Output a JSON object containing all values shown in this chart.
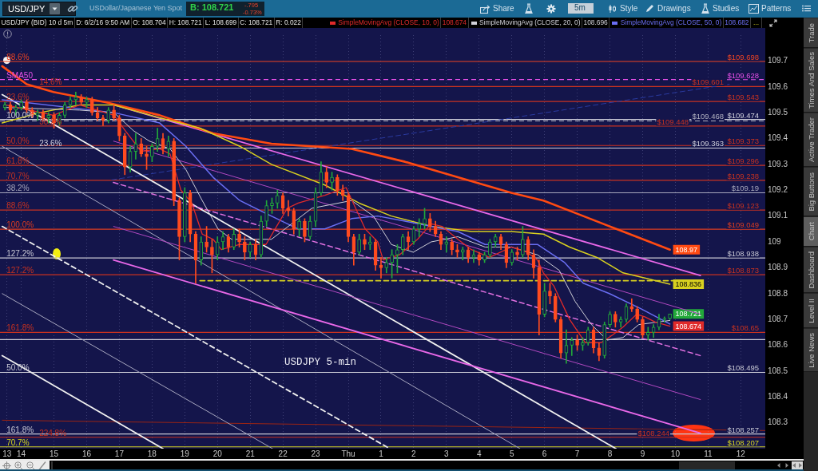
{
  "chart_data": {
    "type": "candlestick",
    "title": "USD/JPY (BID) 10 d 5m",
    "x": [
      "--06-01T13:30",
      "--06-01T13:40",
      "--06-01T13:50",
      "--06-01T14:00",
      "--06-01T14:10",
      "--06-01T14:20",
      "--06-01T14:30",
      "--06-01T14:40",
      "--06-01T14:50",
      "--06-01T15:00",
      "--06-01T15:10",
      "--06-01T15:20",
      "--06-01T15:30",
      "--06-01T15:40",
      "--06-01T15:50",
      "--06-01T16:00",
      "--06-01T16:10",
      "--06-01T16:20",
      "--06-01T16:30",
      "--06-01T16:40",
      "--06-01T16:50",
      "--06-01T17:00",
      "--06-01T17:10",
      "--06-01T17:20",
      "--06-01T17:30",
      "--06-01T17:40",
      "--06-01T17:50",
      "--06-01T18:00",
      "--06-01T18:10",
      "--06-01T18:20",
      "--06-01T18:30",
      "--06-01T18:40",
      "--06-01T18:50",
      "--06-01T19:00",
      "--06-01T19:10",
      "--06-01T19:20",
      "--06-01T19:30",
      "--06-01T19:40",
      "--06-01T19:50",
      "--06-01T20:00",
      "--06-01T20:10",
      "--06-01T20:20",
      "--06-01T20:30",
      "--06-01T20:40",
      "--06-01T20:50",
      "--06-01T21:00",
      "--06-01T21:10",
      "--06-01T21:20",
      "--06-01T21:30",
      "--06-01T21:40",
      "--06-01T21:50",
      "--06-01T22:00",
      "--06-01T22:10",
      "--06-01T22:20",
      "--06-01T22:30",
      "--06-01T22:40",
      "--06-01T22:50",
      "--06-01T23:00",
      "--06-01T23:10",
      "--06-01T23:20",
      "--06-01T23:30",
      "--06-01T23:40",
      "--06-01T23:50",
      "--06-02T00:00",
      "--06-02T00:10",
      "--06-02T00:20",
      "--06-02T00:30",
      "--06-02T00:40",
      "--06-02T00:50",
      "--06-02T01:00",
      "--06-02T01:10",
      "--06-02T01:20",
      "--06-02T01:30",
      "--06-02T01:40",
      "--06-02T01:50",
      "--06-02T02:00",
      "--06-02T02:10",
      "--06-02T02:20",
      "--06-02T02:30",
      "--06-02T02:40",
      "--06-02T02:50",
      "--06-02T03:00",
      "--06-02T03:10",
      "--06-02T03:20",
      "--06-02T03:30",
      "--06-02T03:40",
      "--06-02T03:50",
      "--06-02T04:00",
      "--06-02T04:10",
      "--06-02T04:20",
      "--06-02T04:30",
      "--06-02T04:40",
      "--06-02T04:50",
      "--06-02T05:00",
      "--06-02T05:10",
      "--06-02T05:20",
      "--06-02T05:30",
      "--06-02T05:40",
      "--06-02T05:50",
      "--06-02T06:00",
      "--06-02T06:10",
      "--06-02T06:20",
      "--06-02T06:30",
      "--06-02T06:40",
      "--06-02T06:50",
      "--06-02T07:00",
      "--06-02T07:10",
      "--06-02T07:20",
      "--06-02T07:30",
      "--06-02T07:40",
      "--06-02T07:50",
      "--06-02T08:00",
      "--06-02T08:10",
      "--06-02T08:20",
      "--06-02T08:30",
      "--06-02T08:40",
      "--06-02T08:50",
      "--06-02T09:00",
      "--06-02T09:10",
      "--06-02T09:20",
      "--06-02T09:30",
      "--06-02T09:40",
      "--06-02T09:50"
    ],
    "ohlc": [
      [
        109.52,
        109.54,
        109.51,
        109.53
      ],
      [
        109.53,
        109.54,
        109.5,
        109.51
      ],
      [
        109.51,
        109.53,
        109.49,
        109.52
      ],
      [
        109.52,
        109.55,
        109.51,
        109.54
      ],
      [
        109.54,
        109.55,
        109.5,
        109.51
      ],
      [
        109.51,
        109.52,
        109.48,
        109.49
      ],
      [
        109.49,
        109.51,
        109.47,
        109.5
      ],
      [
        109.5,
        109.51,
        109.47,
        109.48
      ],
      [
        109.48,
        109.5,
        109.46,
        109.49
      ],
      [
        109.49,
        109.5,
        109.44,
        109.46
      ],
      [
        109.46,
        109.5,
        109.45,
        109.49
      ],
      [
        109.49,
        109.54,
        109.48,
        109.53
      ],
      [
        109.53,
        109.56,
        109.52,
        109.55
      ],
      [
        109.55,
        109.58,
        109.53,
        109.56
      ],
      [
        109.56,
        109.57,
        109.53,
        109.54
      ],
      [
        109.54,
        109.56,
        109.52,
        109.55
      ],
      [
        109.55,
        109.56,
        109.49,
        109.5
      ],
      [
        109.5,
        109.52,
        109.47,
        109.48
      ],
      [
        109.48,
        109.49,
        109.45,
        109.47
      ],
      [
        109.47,
        109.52,
        109.46,
        109.51
      ],
      [
        109.51,
        109.53,
        109.47,
        109.48
      ],
      [
        109.48,
        109.49,
        109.39,
        109.41
      ],
      [
        109.41,
        109.42,
        109.26,
        109.29
      ],
      [
        109.29,
        109.37,
        109.27,
        109.35
      ],
      [
        109.35,
        109.42,
        109.32,
        109.38
      ],
      [
        109.38,
        109.4,
        109.33,
        109.34
      ],
      [
        109.34,
        109.37,
        109.28,
        109.33
      ],
      [
        109.33,
        109.38,
        109.31,
        109.37
      ],
      [
        109.37,
        109.44,
        109.35,
        109.4
      ],
      [
        109.4,
        109.42,
        109.34,
        109.36
      ],
      [
        109.36,
        109.41,
        109.33,
        109.39
      ],
      [
        109.39,
        109.4,
        109.14,
        109.16
      ],
      [
        109.16,
        109.17,
        108.93,
        109.02
      ],
      [
        109.02,
        109.21,
        109,
        109.19
      ],
      [
        109.19,
        109.2,
        109,
        109.03
      ],
      [
        109.03,
        109.04,
        108.84,
        108.93
      ],
      [
        108.93,
        109.02,
        108.91,
        109
      ],
      [
        109,
        109.06,
        108.96,
        108.98
      ],
      [
        108.98,
        109.01,
        108.88,
        108.95
      ],
      [
        108.95,
        109.02,
        108.93,
        109
      ],
      [
        109,
        109.04,
        108.97,
        109.02
      ],
      [
        109.02,
        109.03,
        108.96,
        108.98
      ],
      [
        108.98,
        109.05,
        108.97,
        109.03
      ],
      [
        109.03,
        109.05,
        108.98,
        109
      ],
      [
        109,
        109.02,
        108.93,
        108.96
      ],
      [
        108.96,
        109,
        108.94,
        108.99
      ],
      [
        108.99,
        109.01,
        108.93,
        108.95
      ],
      [
        108.95,
        109.1,
        108.94,
        109.08
      ],
      [
        109.08,
        109.16,
        109.06,
        109.14
      ],
      [
        109.14,
        109.17,
        109.11,
        109.15
      ],
      [
        109.15,
        109.2,
        109.13,
        109.18
      ],
      [
        109.18,
        109.19,
        109.11,
        109.13
      ],
      [
        109.13,
        109.16,
        109.1,
        109.12
      ],
      [
        109.12,
        109.13,
        109.03,
        109.05
      ],
      [
        109.05,
        109.09,
        109.02,
        109.08
      ],
      [
        109.08,
        109.09,
        109,
        109.02
      ],
      [
        109.02,
        109.1,
        109.01,
        109.08
      ],
      [
        109.08,
        109.21,
        109.06,
        109.19
      ],
      [
        109.19,
        109.31,
        109.18,
        109.27
      ],
      [
        109.27,
        109.29,
        109.21,
        109.23
      ],
      [
        109.23,
        109.27,
        109.2,
        109.25
      ],
      [
        109.25,
        109.26,
        109.18,
        109.2
      ],
      [
        109.2,
        109.22,
        109.16,
        109.18
      ],
      [
        109.18,
        109.19,
        109,
        109.02
      ],
      [
        109.02,
        109.03,
        108.91,
        108.96
      ],
      [
        108.96,
        109.03,
        108.95,
        109.01
      ],
      [
        109.01,
        109.03,
        108.97,
        108.99
      ],
      [
        108.99,
        109.02,
        108.97,
        109
      ],
      [
        109,
        109.01,
        108.89,
        108.91
      ],
      [
        108.91,
        108.94,
        108.86,
        108.9
      ],
      [
        108.9,
        108.94,
        108.88,
        108.92
      ],
      [
        108.92,
        108.97,
        108.86,
        108.95
      ],
      [
        108.95,
        108.99,
        108.88,
        108.97
      ],
      [
        108.97,
        109.03,
        108.95,
        109.02
      ],
      [
        109.02,
        109.04,
        108.97,
        109
      ],
      [
        109,
        109.06,
        108.99,
        109.05
      ],
      [
        109.05,
        109.09,
        109.02,
        109.07
      ],
      [
        109.07,
        109.13,
        109.05,
        109.09
      ],
      [
        109.09,
        109.11,
        109.04,
        109.06
      ],
      [
        109.06,
        109.08,
        109.02,
        109.03
      ],
      [
        109.03,
        109.04,
        108.97,
        108.99
      ],
      [
        108.99,
        109.02,
        108.96,
        109
      ],
      [
        109,
        109.01,
        108.95,
        108.97
      ],
      [
        108.97,
        108.99,
        108.94,
        108.96
      ],
      [
        108.96,
        108.98,
        108.93,
        108.97
      ],
      [
        108.97,
        108.98,
        108.92,
        108.94
      ],
      [
        108.94,
        108.97,
        108.92,
        108.95
      ],
      [
        108.95,
        108.96,
        108.91,
        108.93
      ],
      [
        108.93,
        108.96,
        108.92,
        108.95
      ],
      [
        108.95,
        109.01,
        108.94,
        109
      ],
      [
        109,
        109.03,
        108.98,
        109.02
      ],
      [
        109.02,
        109.03,
        108.97,
        108.99
      ],
      [
        108.99,
        109,
        108.9,
        108.92
      ],
      [
        108.92,
        108.97,
        108.91,
        108.96
      ],
      [
        108.96,
        108.98,
        108.93,
        108.95
      ],
      [
        108.95,
        109.06,
        108.94,
        109.01
      ],
      [
        109.01,
        109.02,
        108.93,
        108.95
      ],
      [
        108.95,
        108.97,
        108.86,
        108.9
      ],
      [
        108.9,
        108.93,
        108.64,
        108.72
      ],
      [
        108.72,
        108.84,
        108.71,
        108.81
      ],
      [
        108.81,
        108.84,
        108.76,
        108.79
      ],
      [
        108.79,
        108.8,
        108.69,
        108.7
      ],
      [
        108.7,
        108.71,
        108.55,
        108.57
      ],
      [
        108.57,
        108.66,
        108.53,
        108.6
      ],
      [
        108.6,
        108.63,
        108.56,
        108.62
      ],
      [
        108.62,
        108.64,
        108.58,
        108.6
      ],
      [
        108.6,
        108.63,
        108.58,
        108.61
      ],
      [
        108.61,
        108.67,
        108.6,
        108.66
      ],
      [
        108.66,
        108.67,
        108.57,
        108.59
      ],
      [
        108.59,
        108.61,
        108.54,
        108.56
      ],
      [
        108.56,
        108.69,
        108.55,
        108.68
      ],
      [
        108.68,
        108.73,
        108.67,
        108.72
      ],
      [
        108.72,
        108.73,
        108.67,
        108.69
      ],
      [
        108.69,
        108.71,
        108.67,
        108.7
      ],
      [
        108.7,
        108.76,
        108.69,
        108.75
      ],
      [
        108.75,
        108.78,
        108.73,
        108.74
      ],
      [
        108.74,
        108.75,
        108.69,
        108.7
      ],
      [
        108.7,
        108.71,
        108.63,
        108.64
      ],
      [
        108.64,
        108.67,
        108.62,
        108.65
      ],
      [
        108.65,
        108.68,
        108.63,
        108.67
      ],
      [
        108.67,
        108.72,
        108.66,
        108.7
      ],
      [
        108.7,
        108.71,
        108.69,
        108.704
      ],
      [
        108.704,
        108.721,
        108.699,
        108.721
      ]
    ],
    "colors": [
      "#22a83a",
      "#ff4b1f",
      "#22a83a",
      "#22a83a",
      "#ff4b1f",
      "#ff4b1f",
      "#22a83a",
      "#ff4b1f",
      "#22a83a",
      "#ff4b1f",
      "#22a83a",
      "#22a83a",
      "#22a83a",
      "#22a83a",
      "#ff4b1f",
      "#22a83a",
      "#ff4b1f",
      "#ff4b1f",
      "#ff4b1f",
      "#22a83a",
      "#ff4b1f",
      "#ff4b1f",
      "#ff4b1f",
      "#22a83a",
      "#22a83a",
      "#ff4b1f",
      "#ff4b1f",
      "#22a83a",
      "#22a83a",
      "#ff4b1f",
      "#22a83a",
      "#ff4b1f",
      "#ff4b1f",
      "#22a83a",
      "#ff4b1f",
      "#ff4b1f",
      "#22a83a",
      "#ff4b1f",
      "#ff4b1f",
      "#22a83a",
      "#22a83a",
      "#ff4b1f",
      "#22a83a",
      "#ff4b1f",
      "#ff4b1f",
      "#22a83a",
      "#ff4b1f",
      "#22a83a",
      "#22a83a",
      "#22a83a",
      "#22a83a",
      "#ff4b1f",
      "#ff4b1f",
      "#ff4b1f",
      "#22a83a",
      "#ff4b1f",
      "#22a83a",
      "#22a83a",
      "#22a83a",
      "#ff4b1f",
      "#22a83a",
      "#ff4b1f",
      "#ff4b1f",
      "#ff4b1f",
      "#ff4b1f",
      "#22a83a",
      "#ff4b1f",
      "#22a83a",
      "#ff4b1f",
      "#ff4b1f",
      "#22a83a",
      "#22a83a",
      "#22a83a",
      "#22a83a",
      "#ff4b1f",
      "#22a83a",
      "#22a83a",
      "#22a83a",
      "#ff4b1f",
      "#ff4b1f",
      "#ff4b1f",
      "#22a83a",
      "#ff4b1f",
      "#ff4b1f",
      "#22a83a",
      "#ff4b1f",
      "#22a83a",
      "#ff4b1f",
      "#22a83a",
      "#22a83a",
      "#22a83a",
      "#ff4b1f",
      "#ff4b1f",
      "#22a83a",
      "#ff4b1f",
      "#22a83a",
      "#ff4b1f",
      "#ff4b1f",
      "#ff4b1f",
      "#22a83a",
      "#ff4b1f",
      "#ff4b1f",
      "#ff4b1f",
      "#22a83a",
      "#22a83a",
      "#ff4b1f",
      "#22a83a",
      "#22a83a",
      "#ff4b1f",
      "#ff4b1f",
      "#22a83a",
      "#22a83a",
      "#ff4b1f",
      "#22a83a",
      "#22a83a",
      "#ff4b1f",
      "#ff4b1f",
      "#ff4b1f",
      "#22a83a",
      "#22a83a",
      "#22a83a",
      "#22a83a",
      "#22a83a"
    ],
    "value_labels": [
      null,
      null,
      null,
      null,
      null,
      null,
      null,
      null,
      null,
      null,
      null,
      null,
      null,
      null,
      null,
      null,
      null,
      null,
      null,
      null,
      null,
      null,
      null,
      null,
      null,
      null,
      null,
      null,
      null,
      null,
      null,
      null,
      null,
      null,
      null,
      null,
      null,
      null,
      null,
      null,
      null,
      null,
      null,
      null,
      null,
      null,
      null,
      null,
      null,
      null,
      null,
      null,
      null,
      null,
      null,
      null,
      null,
      null,
      null,
      null,
      null,
      null,
      null,
      null,
      null,
      null,
      null,
      null,
      null,
      null,
      null,
      null,
      null,
      null,
      null,
      null,
      null,
      null,
      null,
      null,
      null,
      null,
      null,
      null,
      null,
      null,
      null,
      null,
      null,
      null,
      null,
      null,
      null,
      null,
      null,
      null,
      null,
      null,
      null,
      null,
      null,
      null,
      null,
      null,
      null,
      null,
      null,
      null,
      null,
      null,
      null,
      null,
      null,
      null,
      null,
      null,
      null,
      null,
      null,
      null,
      null,
      null,
      "108.721"
    ],
    "series": [
      {
        "type": "line",
        "name": "SimpleMovingAvg (CLOSE, 10, 0)",
        "color": "#e02a2a",
        "x": [
          "--06-01T13:31",
          "--06-01T14:59",
          "--06-01T15:47",
          "--06-01T16:50",
          "--06-01T17:11",
          "--06-01T17:40",
          "--06-01T18:14",
          "--06-01T18:33",
          "--06-01T18:53",
          "--06-01T19:13",
          "--06-01T19:32",
          "--06-01T19:52",
          "--06-01T20:07",
          "--06-01T20:41",
          "--06-01T21:29",
          "--06-01T22:08",
          "--06-01T22:28",
          "--06-01T23:17",
          "--06-01T23:56",
          "--06-02T00:31",
          "--06-02T00:54",
          "--06-02T01:04",
          "--06-02T01:34",
          "--06-02T02:07",
          "--06-02T02:32",
          "--06-02T02:52",
          "--06-02T03:21",
          "--06-02T03:46",
          "--06-02T04:19",
          "--06-02T04:59",
          "--06-02T05:28",
          "--06-02T05:47",
          "--06-02T05:58",
          "--06-02T06:17",
          "--06-02T06:46",
          "--06-02T07:15",
          "--06-02T07:44",
          "--06-02T08:05",
          "--06-02T08:24",
          "--06-02T08:49",
          "--06-02T09:04",
          "--06-02T09:23",
          "--06-02T09:50"
        ],
        "values": [
          109.53,
          109.49,
          109.53,
          109.49,
          109.43,
          109.35,
          109.36,
          109.34,
          109.2,
          109.15,
          109.03,
          109.01,
          108.97,
          108.99,
          108.99,
          109.13,
          109.15,
          109.18,
          109.21,
          109.05,
          109,
          108.93,
          108.95,
          109.01,
          109.07,
          109.06,
          109.01,
          108.97,
          108.94,
          108.98,
          108.96,
          108.93,
          108.88,
          108.83,
          108.7,
          108.61,
          108.61,
          108.64,
          108.67,
          108.72,
          108.71,
          108.69,
          108.674
        ],
        "value_labels": [
          null,
          null,
          null,
          null,
          null,
          null,
          null,
          null,
          null,
          null,
          null,
          null,
          null,
          null,
          null,
          null,
          null,
          null,
          null,
          null,
          null,
          null,
          null,
          null,
          null,
          null,
          null,
          null,
          null,
          null,
          null,
          null,
          null,
          null,
          null,
          null,
          null,
          null,
          null,
          null,
          null,
          null,
          "108.674"
        ]
      },
      {
        "type": "line",
        "name": "SimpleMovingAvg (CLOSE, 20, 0)",
        "color": "#d0d0d8",
        "x": [
          "--06-01T13:31",
          "--06-01T15:47",
          "--06-01T16:50",
          "--06-01T17:26",
          "--06-01T17:55",
          "--06-01T18:33",
          "--06-01T19:02",
          "--06-01T19:32",
          "--06-01T20:01",
          "--06-01T20:26",
          "--06-01T21:39",
          "--06-01T22:53",
          "--06-02T00:06",
          "--06-02T00:46",
          "--06-02T01:19",
          "--06-02T01:59",
          "--06-02T02:32",
          "--06-02T03:21",
          "--06-02T04:11",
          "--06-02T04:59",
          "--06-02T05:47",
          "--06-02T06:27",
          "--06-02T06:56",
          "--06-02T07:26",
          "--06-02T07:55",
          "--06-02T08:24",
          "--06-02T08:53",
          "--06-02T09:50"
        ],
        "values": [
          109.52,
          109.51,
          109.5,
          109.43,
          109.39,
          109.36,
          109.28,
          109.16,
          109.05,
          109.01,
          109.01,
          109.13,
          109.16,
          109.1,
          108.99,
          108.96,
          109,
          109.02,
          108.98,
          108.98,
          108.95,
          108.89,
          108.77,
          108.68,
          108.62,
          108.63,
          108.68,
          108.696
        ]
      },
      {
        "type": "line",
        "name": "SimpleMovingAvg (CLOSE, 50, 0)",
        "color": "#6a6ef2",
        "x": [
          "--06-01T13:25",
          "--06-01T16:50",
          "--06-01T18:14",
          "--06-01T19:02",
          "--06-01T19:52",
          "--06-01T20:41",
          "--06-01T21:29",
          "--06-01T22:28",
          "--06-01T23:17",
          "--06-02T00:06",
          "--06-02T00:54",
          "--06-02T01:44",
          "--06-02T02:32",
          "--06-02T03:21",
          "--06-02T04:11",
          "--06-02T04:59",
          "--06-02T05:47",
          "--06-02T06:37",
          "--06-02T07:11",
          "--06-02T07:59",
          "--06-02T08:58",
          "--06-02T09:50"
        ],
        "values": [
          109.55,
          109.5,
          109.46,
          109.37,
          109.25,
          109.16,
          109.11,
          109.05,
          109.05,
          109.09,
          109.1,
          109.08,
          109.06,
          109.04,
          108.99,
          108.99,
          108.99,
          108.92,
          108.84,
          108.8,
          108.74,
          108.682
        ]
      },
      {
        "type": "line",
        "color": "#d8d020",
        "x": [
          "--06-01T13:25",
          "--06-01T14:34",
          "--06-01T15:47",
          "--06-01T16:50",
          "--06-01T18:14",
          "--06-01T19:28",
          "--06-01T20:41",
          "--06-01T21:39",
          "--06-01T23:17",
          "--06-02T00:20",
          "--06-02T01:19",
          "--06-02T02:32",
          "--06-02T03:46",
          "--06-02T04:59",
          "--06-02T05:58",
          "--06-02T06:46",
          "--06-02T07:36",
          "--06-02T08:24",
          "--06-02T09:04",
          "--06-02T09:50"
        ],
        "values": [
          109.46,
          109.5,
          109.53,
          109.53,
          109.48,
          109.44,
          109.37,
          109.3,
          109.22,
          109.15,
          109.1,
          109.06,
          109.04,
          109.04,
          109.03,
          108.98,
          108.94,
          108.88,
          108.86,
          108.836
        ],
        "value_labels": [
          null,
          null,
          null,
          null,
          null,
          null,
          null,
          null,
          null,
          null,
          null,
          null,
          null,
          null,
          null,
          null,
          null,
          null,
          null,
          "108.836"
        ]
      },
      {
        "type": "line",
        "color": "#ff4a12",
        "x": [
          "--06-01T13:25",
          "--06-01T14:10",
          "--06-01T14:59",
          "--06-01T16:36",
          "--06-01T18:14",
          "--06-01T19:52",
          "--06-01T21:39",
          "--06-02T00:06",
          "--06-02T01:44",
          "--06-02T03:21",
          "--06-02T04:59",
          "--06-02T05:58",
          "--06-02T07:11",
          "--06-02T08:24",
          "--06-02T09:50"
        ],
        "values": [
          109.68,
          109.61,
          109.58,
          109.54,
          109.49,
          109.42,
          109.38,
          109.36,
          109.31,
          109.25,
          109.19,
          109.16,
          109.1,
          109.04,
          108.97
        ],
        "value_labels": [
          null,
          null,
          null,
          null,
          null,
          null,
          null,
          null,
          null,
          null,
          null,
          null,
          null,
          null,
          "108.97"
        ]
      },
      {
        "type": "line",
        "color": "#e868e8",
        "x": [
          "--06-01T16:50",
          "--06-02T10:46"
        ],
        "values": [
          109.53,
          108.87
        ]
      },
      {
        "type": "line",
        "color": "#b048c0",
        "x": [
          "--06-01T16:49",
          "--06-02T10:46"
        ],
        "values": [
          109.39,
          108.72
        ]
      },
      {
        "type": "line",
        "color": "#e070e0",
        "line_style": "dashed",
        "x": [
          "--06-01T16:49",
          "--06-02T10:46"
        ],
        "values": [
          109.23,
          108.56
        ]
      },
      {
        "type": "line",
        "color": "#b048c0",
        "x": [
          "--06-01T16:49",
          "--06-02T10:46"
        ],
        "values": [
          109.06,
          108.39
        ]
      },
      {
        "type": "line",
        "color": "#e868e8",
        "x": [
          "--06-01T16:49",
          "--06-02T10:46"
        ],
        "values": [
          108.93,
          108.26
        ]
      },
      {
        "type": "line",
        "color": "#f0f0f0",
        "x": [
          "--06-01T13:25",
          "--06-02T08:11"
        ],
        "values": [
          109.57,
          108.2
        ]
      },
      {
        "type": "line",
        "color": "#a8a8c0",
        "x": [
          "--06-01T13:25",
          "--06-02T05:15"
        ],
        "values": [
          109.37,
          108.2
        ]
      },
      {
        "type": "line",
        "color": "#a8a8c0",
        "x": [
          "--06-01T13:25",
          "--06-01T21:41"
        ],
        "values": [
          108.8,
          108.2
        ]
      },
      {
        "type": "line",
        "color": "#f0f0f0",
        "x": [
          "--06-01T13:25",
          "--06-01T18:20"
        ],
        "values": [
          108.56,
          108.2
        ]
      },
      {
        "type": "line",
        "color": "#f0f0f0",
        "line_style": "dashed",
        "x": [
          "--06-01T13:25",
          "--06-02T01:16"
        ],
        "values": [
          109.06,
          108.2
        ]
      },
      {
        "type": "line",
        "color": "#2a3aa0",
        "line_style": "dashed",
        "x": [
          "--06-01T16:46",
          "--06-02T11:39"
        ],
        "values": [
          109.24,
          109.61
        ]
      },
      {
        "type": "line",
        "color": "#d8d020",
        "line_style": "dashed",
        "x": [
          "--06-01T19:28",
          "--06-02T10:11"
        ],
        "values": [
          108.85,
          108.85
        ]
      },
      {
        "type": "line",
        "color": "#9a2414",
        "x": [
          "--06-01T13:25",
          "--06-02T12:45"
        ],
        "values": [
          108.31,
          108.27
        ]
      }
    ],
    "xlim": [
      "--06-01T13:21",
      "--06-02T12:45"
    ],
    "xticks": [
      {
        "value": "--06-01T13:34",
        "label": "13"
      },
      {
        "value": "--06-01T14:00",
        "label": "14"
      },
      {
        "value": "--06-01T15:00",
        "label": "15"
      },
      {
        "value": "--06-01T16:00",
        "label": "16"
      },
      {
        "value": "--06-01T17:00",
        "label": "17"
      },
      {
        "value": "--06-01T18:00",
        "label": "18"
      },
      {
        "value": "--06-01T19:00",
        "label": "19"
      },
      {
        "value": "--06-01T20:00",
        "label": "20"
      },
      {
        "value": "--06-01T21:00",
        "label": "21"
      },
      {
        "value": "--06-01T22:00",
        "label": "22"
      },
      {
        "value": "--06-01T23:00",
        "label": "23"
      },
      {
        "value": "--06-02T00:00",
        "label": "Thu"
      },
      {
        "value": "--06-02T01:00",
        "label": "1"
      },
      {
        "value": "--06-02T02:00",
        "label": "2"
      },
      {
        "value": "--06-02T03:00",
        "label": "3"
      },
      {
        "value": "--06-02T04:00",
        "label": "4"
      },
      {
        "value": "--06-02T05:00",
        "label": "5"
      },
      {
        "value": "--06-02T06:00",
        "label": "6"
      },
      {
        "value": "--06-02T07:00",
        "label": "7"
      },
      {
        "value": "--06-02T08:00",
        "label": "8"
      },
      {
        "value": "--06-02T09:00",
        "label": "9"
      },
      {
        "value": "--06-02T10:00",
        "label": "10"
      },
      {
        "value": "--06-02T11:00",
        "label": "11"
      },
      {
        "value": "--06-02T12:00",
        "label": "12"
      }
    ],
    "ylim": [
      108.2,
      109.8
    ],
    "yticks": [
      108.3,
      108.4,
      108.5,
      108.6,
      108.7,
      108.8,
      108.9,
      109,
      109.1,
      109.2,
      109.3,
      109.4,
      109.5,
      109.6,
      109.7
    ],
    "ref_lines": [
      {
        "axis": "y",
        "value": 109.698,
        "label": "$109.698",
        "color": "#ee4422"
      },
      {
        "axis": "y",
        "value": 109.628,
        "label": "$109.628",
        "color": "#e850e8",
        "line_style": "dashed"
      },
      {
        "axis": "y",
        "value": 109.601,
        "label": "$109.601",
        "color": "#c83220"
      },
      {
        "axis": "y",
        "value": 109.543,
        "label": "$109.543",
        "color": "#c83220"
      },
      {
        "axis": "y",
        "value": 109.474,
        "label": "$109.474",
        "color": "#d0d0dc"
      },
      {
        "axis": "y",
        "value": 109.468,
        "label": "$109.468",
        "color": "#b0b0c0",
        "line_style": "dashed"
      },
      {
        "axis": "y",
        "value": 109.448,
        "label": "$109.448",
        "color": "#c83220"
      },
      {
        "axis": "y",
        "value": 109.373,
        "label": "$109.373",
        "color": "#c83220"
      },
      {
        "axis": "y",
        "value": 109.363,
        "label": "$109.363",
        "color": "#d0d0dc"
      },
      {
        "axis": "y",
        "value": 109.296,
        "label": "$109.296",
        "color": "#c83220"
      },
      {
        "axis": "y",
        "value": 109.238,
        "label": "$109.238",
        "color": "#c83220"
      },
      {
        "axis": "y",
        "value": 109.19,
        "label": "$109.19",
        "color": "#a8a8bc"
      },
      {
        "axis": "y",
        "value": 109.123,
        "label": "$109.123",
        "color": "#c83220"
      },
      {
        "axis": "y",
        "value": 109.049,
        "label": "$109.049",
        "color": "#dd3c20"
      },
      {
        "axis": "y",
        "value": 108.938,
        "label": "$108.938",
        "color": "#c8c8d4"
      },
      {
        "axis": "y",
        "value": 108.873,
        "label": "$108.873",
        "color": "#c83220"
      },
      {
        "axis": "y",
        "value": 108.65,
        "label": "$108.65",
        "color": "#c83220"
      },
      {
        "axis": "y",
        "value": 108.622,
        "color": "#c8c8d4"
      },
      {
        "axis": "y",
        "value": 108.495,
        "label": "$108.495",
        "color": "#c8c8d4"
      },
      {
        "axis": "y",
        "value": 108.257,
        "label": "$108.257",
        "color": "#c8c8d4"
      },
      {
        "axis": "y",
        "value": 108.244,
        "label": "$108.244",
        "color": "#c83220"
      },
      {
        "axis": "y",
        "value": 108.207,
        "label": "$108.207",
        "color": "#d8d820"
      }
    ],
    "annotations": [
      "D: 6/2/16 9:50 AM",
      "O: 108.704",
      "H: 108.721",
      "L: 108.699",
      "C: 108.721",
      "R: 0.022",
      "108.674",
      "108.696",
      "108.682",
      "...",
      "USDJPY 5-min",
      "USD/JPY",
      "USDollar/Japanese Yen Spot",
      "B: 108.721",
      "-.795",
      "-0.73%",
      "Share",
      "5m",
      "Style",
      "Drawings",
      "Studies",
      "Patterns",
      "Trade",
      "Times And Sales",
      "Active Trader",
      "Big Buttons",
      "Chart",
      "Dashboard",
      "Level II",
      "Live News",
      {
        "text": "88.6%",
        "x": "--06-01T13:33",
        "y": 109.698
      },
      {
        "text": "SMA50",
        "x": "--06-01T13:33",
        "y": 109.628
      },
      {
        "text": "14.6%",
        "x": "--06-01T14:33",
        "y": 109.601
      },
      {
        "text": "23.6%",
        "x": "--06-01T13:33",
        "y": 109.543
      },
      {
        "text": "100.0%",
        "x": "--06-01T13:33",
        "y": 109.474
      },
      {
        "text": "38.2%",
        "x": "--06-01T14:33",
        "y": 109.448
      },
      {
        "text": "50.0%",
        "x": "--06-01T13:33",
        "y": 109.373
      },
      {
        "text": "23.6%",
        "x": "--06-01T14:33",
        "y": 109.363
      },
      {
        "text": "61.8%",
        "x": "--06-01T13:33",
        "y": 109.296
      },
      {
        "text": "70.7%",
        "x": "--06-01T13:33",
        "y": 109.238
      },
      {
        "text": "38.2%",
        "x": "--06-01T13:33",
        "y": 109.19
      },
      {
        "text": "88.6%",
        "x": "--06-01T13:33",
        "y": 109.123
      },
      {
        "text": "100.0%",
        "x": "--06-01T13:33",
        "y": 109.049
      },
      {
        "text": "127.2%",
        "x": "--06-01T13:33",
        "y": 108.938
      },
      {
        "text": "127.2%",
        "x": "--06-01T13:33",
        "y": 108.873
      },
      {
        "text": "161.8%",
        "x": "--06-01T13:33",
        "y": 108.65
      },
      {
        "text": "50.0%",
        "x": "--06-01T13:33",
        "y": 108.495
      },
      {
        "text": "161.8%",
        "x": "--06-01T13:33",
        "y": 108.257
      },
      {
        "text": "224.8%",
        "x": "--06-01T14:33",
        "y": 108.244
      },
      {
        "text": "70.7%",
        "x": "--06-01T13:33",
        "y": 108.207
      }
    ],
    "legend": "top right",
    "grid": "x",
    "marker": "none"
  }
}
